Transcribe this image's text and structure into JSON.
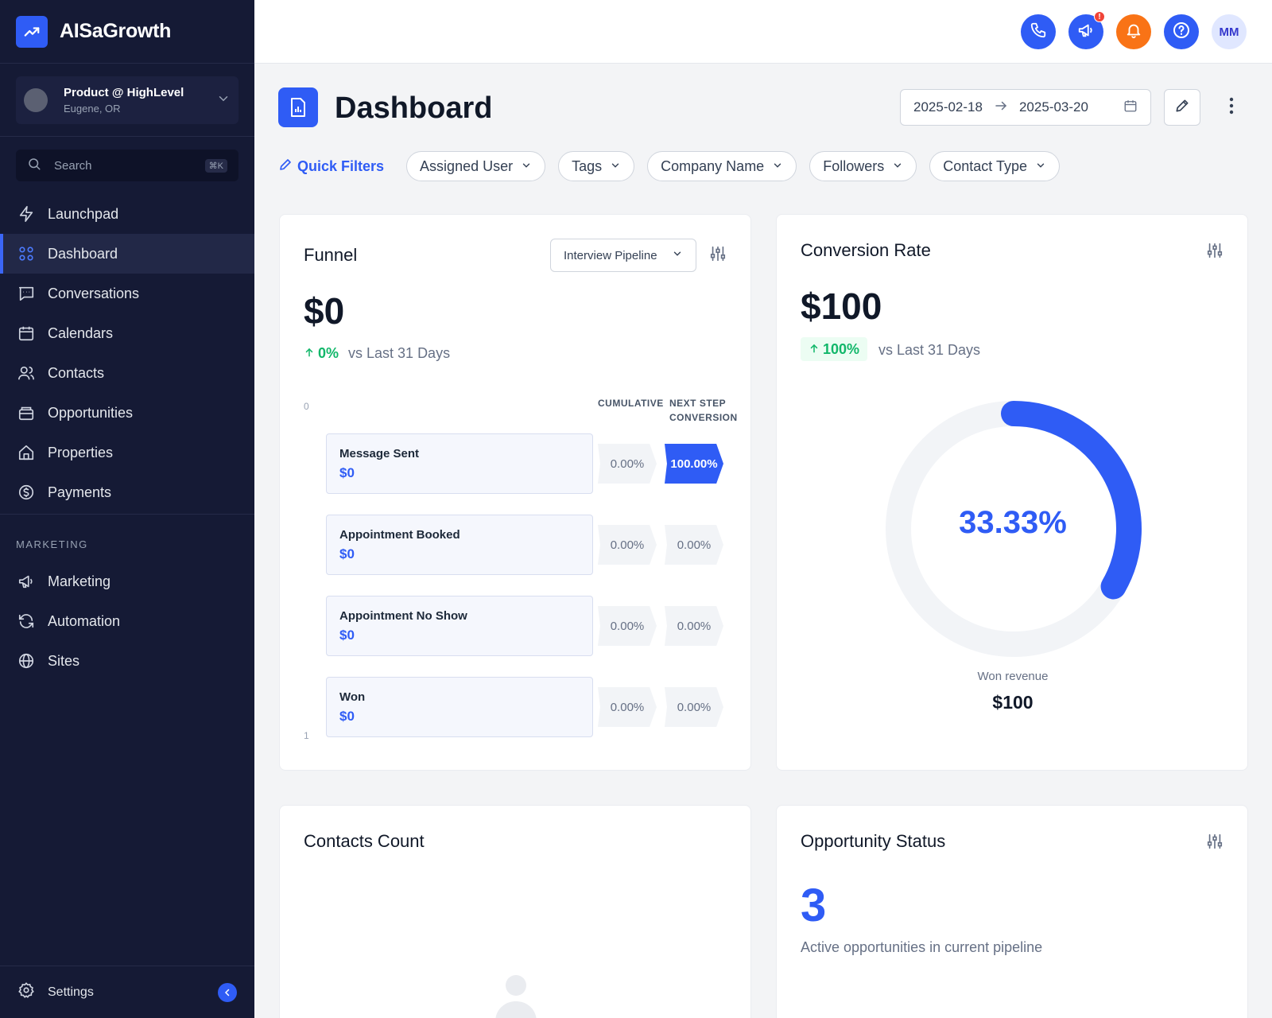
{
  "brand": {
    "name": "AISaGrowth"
  },
  "account": {
    "name": "Product @ HighLevel",
    "location": "Eugene, OR"
  },
  "search": {
    "placeholder": "Search",
    "shortcut": "⌘K"
  },
  "nav": {
    "items": [
      {
        "label": "Launchpad",
        "icon": "lightning-icon"
      },
      {
        "label": "Dashboard",
        "icon": "grid-icon",
        "active": true
      },
      {
        "label": "Conversations",
        "icon": "chat-icon"
      },
      {
        "label": "Calendars",
        "icon": "calendar-icon"
      },
      {
        "label": "Contacts",
        "icon": "users-icon"
      },
      {
        "label": "Opportunities",
        "icon": "briefcase-icon"
      },
      {
        "label": "Properties",
        "icon": "home-icon"
      },
      {
        "label": "Payments",
        "icon": "dollar-circle-icon"
      }
    ],
    "marketing_label": "MARKETING",
    "marketing_items": [
      {
        "label": "Marketing",
        "icon": "megaphone-icon"
      },
      {
        "label": "Automation",
        "icon": "refresh-icon"
      },
      {
        "label": "Sites",
        "icon": "globe-icon"
      }
    ],
    "settings_label": "Settings"
  },
  "topbar": {
    "avatar_initials": "MM",
    "badge": "!",
    "colors": {
      "primary": "#2f5cf5",
      "notification": "#f97316"
    }
  },
  "page": {
    "title": "Dashboard",
    "date_start": "2025-02-18",
    "date_end": "2025-03-20"
  },
  "filters": {
    "quick_label": "Quick Filters",
    "chips": [
      "Assigned User",
      "Tags",
      "Company Name",
      "Followers",
      "Contact Type"
    ]
  },
  "funnel": {
    "title": "Funnel",
    "pipeline": "Interview Pipeline",
    "value": "$0",
    "change_pct": "0%",
    "vs_label": "vs Last 31 Days",
    "axis_top": "0",
    "axis_bottom": "1",
    "col_cumulative": "CUMULATIVE",
    "col_next_line1": "NEXT STEP",
    "col_next_line2": "CONVERSION",
    "stages": [
      {
        "name": "Message Sent",
        "value": "$0",
        "cumulative": "0.00%",
        "next": "100.00%"
      },
      {
        "name": "Appointment Booked",
        "value": "$0",
        "cumulative": "0.00%",
        "next": "0.00%"
      },
      {
        "name": "Appointment No Show",
        "value": "$0",
        "cumulative": "0.00%",
        "next": "0.00%"
      },
      {
        "name": "Won",
        "value": "$0",
        "cumulative": "0.00%",
        "next": "0.00%"
      }
    ]
  },
  "conversion": {
    "title": "Conversion Rate",
    "value": "$100",
    "change_pct": "100%",
    "vs_label": "vs Last 31 Days",
    "rate_label": "33.33%",
    "rate": 0.3333,
    "won_label": "Won revenue",
    "won_value": "$100"
  },
  "contacts": {
    "title": "Contacts Count"
  },
  "opportunity": {
    "title": "Opportunity Status",
    "count": "3",
    "caption": "Active opportunities in current pipeline"
  }
}
